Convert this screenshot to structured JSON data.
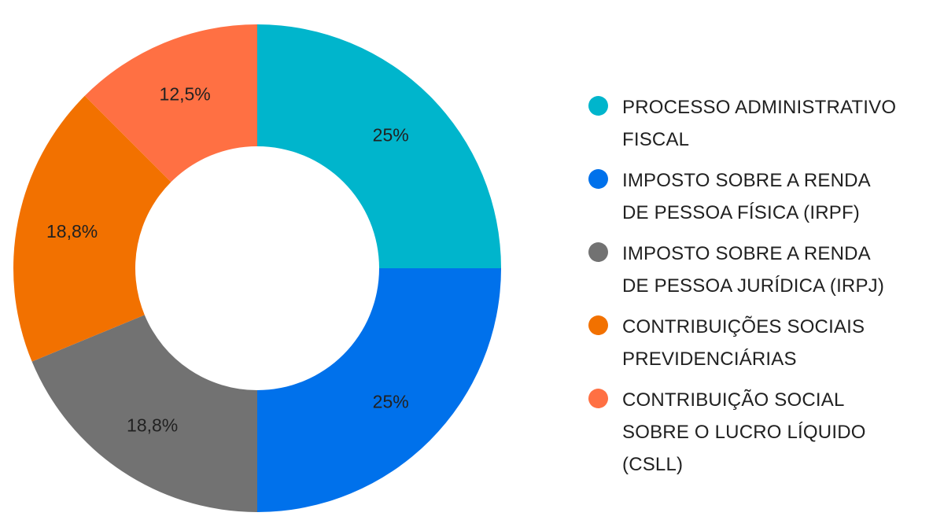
{
  "chart_data": {
    "type": "pie",
    "style": "donut",
    "title": "",
    "series": [
      {
        "categories": [
          "PROCESSO ADMINISTRATIVO FISCAL",
          "IMPOSTO SOBRE A RENDA DE PESSOA FÍSICA (IRPF)",
          "IMPOSTO SOBRE A RENDA DE PESSOA JURÍDICA (IRPJ)",
          "CONTRIBUIÇÕES SOCIAIS PREVIDENCIÁRIAS",
          "CONTRIBUIÇÃO SOCIAL SOBRE O LUCRO LÍQUIDO (CSLL)"
        ],
        "values": [
          25,
          25,
          18.75,
          18.75,
          12.5
        ],
        "labels": [
          "25%",
          "25%",
          "18,8%",
          "18,8%",
          "12,5%"
        ],
        "colors": [
          "#00b5cc",
          "#0071eb",
          "#727272",
          "#f27100",
          "#ff7043"
        ]
      }
    ],
    "legend": {
      "position": "right",
      "entries": [
        "PROCESSO ADMINISTRATIVO\nFISCAL",
        "IMPOSTO SOBRE A RENDA\nDE PESSOA FÍSICA (IRPF)",
        "IMPOSTO SOBRE A RENDA\nDE PESSOA JURÍDICA (IRPJ)",
        "CONTRIBUIÇÕES SOCIAIS\nPREVIDENCIÁRIAS",
        "CONTRIBUIÇÃO SOCIAL\nSOBRE O LUCRO LÍQUIDO\n(CSLL)"
      ]
    }
  }
}
